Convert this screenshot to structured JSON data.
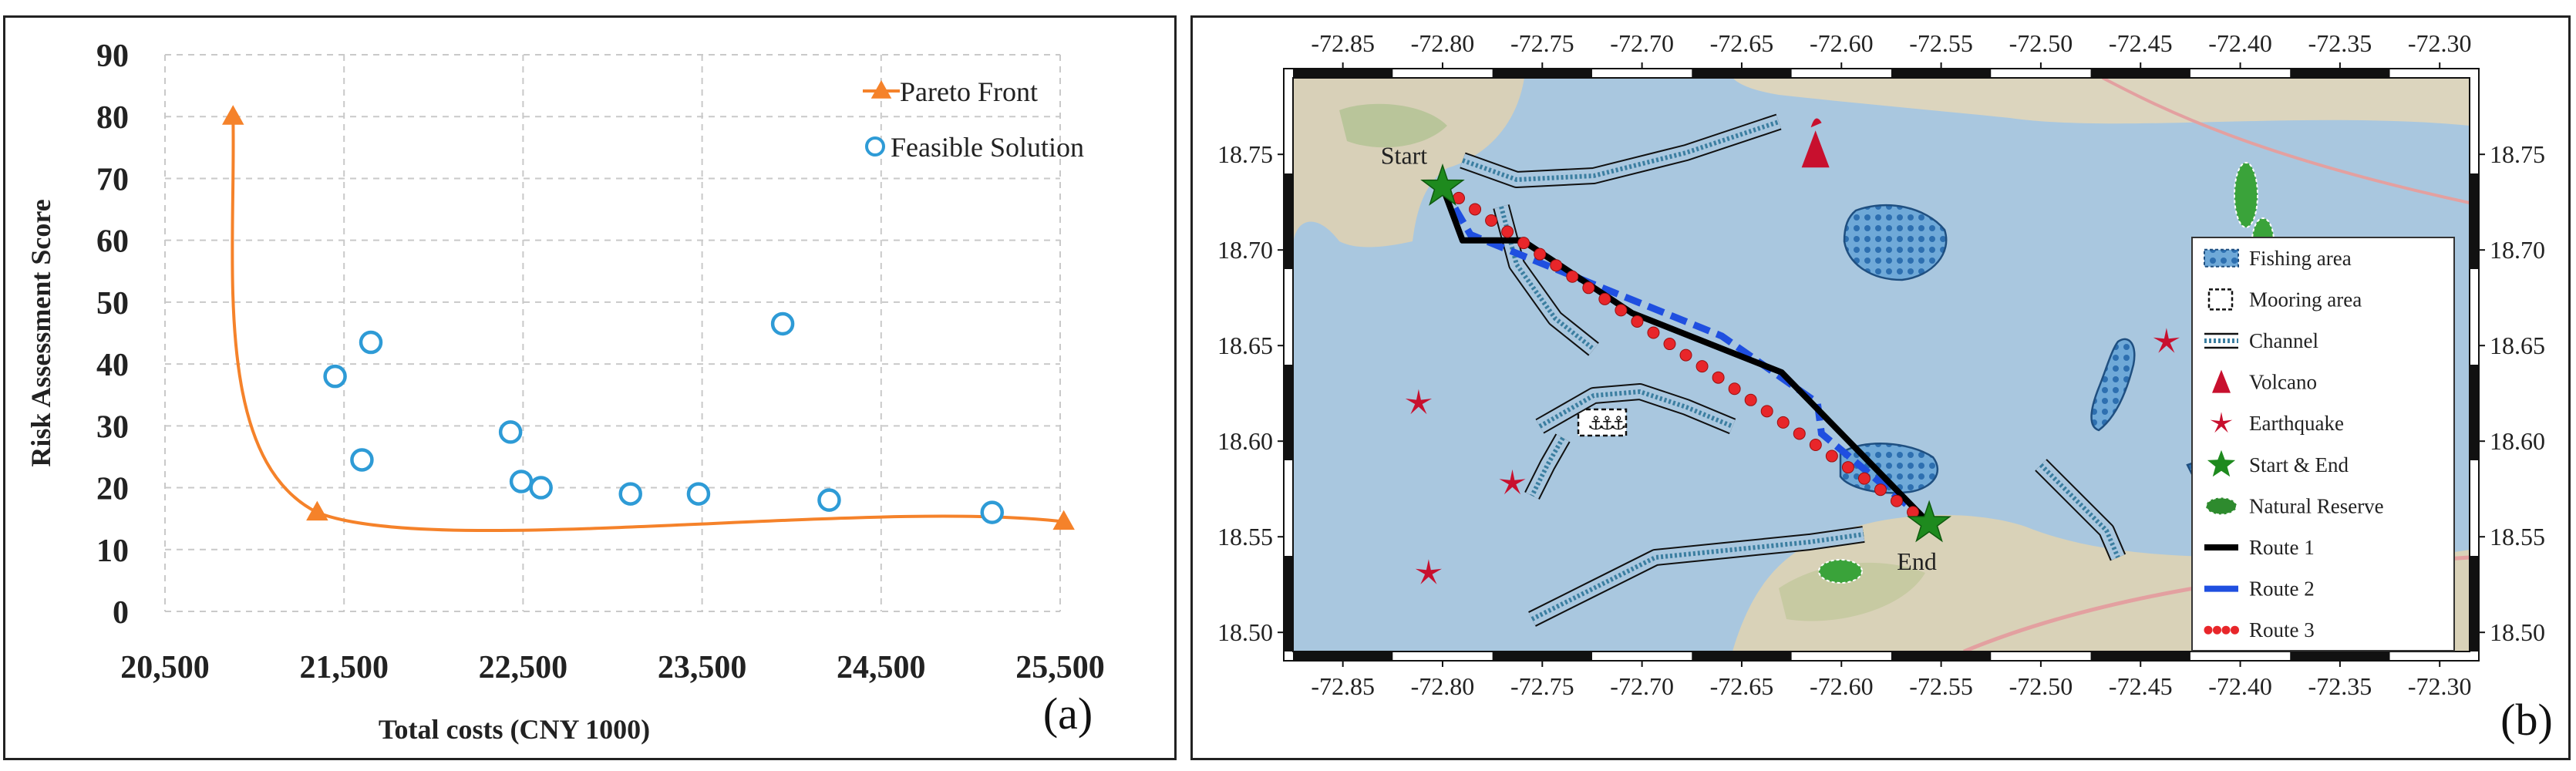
{
  "chart_data": [
    {
      "type": "scatter",
      "panel_label": "(a)",
      "xlabel": "Total costs (CNY 1000)",
      "ylabel": "Risk Assessment Score",
      "xlim": [
        20500,
        25500
      ],
      "ylim": [
        0,
        90
      ],
      "x_ticks": [
        "20,500",
        "21,500",
        "22,500",
        "23,500",
        "24,500",
        "25,500"
      ],
      "y_ticks": [
        "0",
        "10",
        "20",
        "30",
        "40",
        "50",
        "60",
        "70",
        "80",
        "90"
      ],
      "grid": "dashed",
      "legend_position": "top-right",
      "series": [
        {
          "name": "Pareto Front",
          "marker": "triangle",
          "color": "#F5822A",
          "points": [
            [
              20880,
              80
            ],
            [
              21350,
              16
            ],
            [
              25520,
              14.5
            ]
          ]
        },
        {
          "name": "Feasible Solution",
          "marker": "circle",
          "color": "#2E9BD6",
          "points": [
            [
              21450,
              38
            ],
            [
              21600,
              24.5
            ],
            [
              21650,
              43.5
            ],
            [
              22430,
              29
            ],
            [
              22490,
              21
            ],
            [
              22600,
              20
            ],
            [
              23100,
              19
            ],
            [
              23480,
              19
            ],
            [
              23950,
              46.5
            ],
            [
              24210,
              18
            ],
            [
              25120,
              16
            ]
          ]
        }
      ]
    },
    {
      "type": "map",
      "panel_label": "(b)",
      "x_ticks": [
        "-72.85",
        "-72.80",
        "-72.75",
        "-72.70",
        "-72.65",
        "-72.60",
        "-72.55",
        "-72.50",
        "-72.45",
        "-72.40",
        "-72.35",
        "-72.30"
      ],
      "y_ticks": [
        "18.75",
        "18.70",
        "18.65",
        "18.60",
        "18.55",
        "18.50"
      ],
      "lon_range": [
        -72.875,
        -72.285
      ],
      "lat_range": [
        18.49,
        18.79
      ],
      "annotations": [
        "Start",
        "End"
      ],
      "legend": [
        {
          "label": "Fishing area",
          "symbol": "fishing"
        },
        {
          "label": "Mooring area",
          "symbol": "mooring"
        },
        {
          "label": "Channel",
          "symbol": "channel"
        },
        {
          "label": "Volcano",
          "symbol": "volcano",
          "color": "#C8102E"
        },
        {
          "label": "Earthquake",
          "symbol": "earthquake",
          "color": "#C8102E"
        },
        {
          "label": "Start & End",
          "symbol": "star",
          "color": "#1E8A1E"
        },
        {
          "label": "Natural Reserve",
          "symbol": "reserve",
          "color": "#2E8B2E"
        },
        {
          "label": "Route 1",
          "symbol": "line",
          "color": "#000000"
        },
        {
          "label": "Route 2",
          "symbol": "line",
          "color": "#1F4FE0"
        },
        {
          "label": "Route 3",
          "symbol": "dots",
          "color": "#E8262A"
        }
      ],
      "routes": {
        "Route 1": [
          [
            -72.8,
            18.733
          ],
          [
            -72.79,
            18.705
          ],
          [
            -72.76,
            18.705
          ],
          [
            -72.705,
            18.667
          ],
          [
            -72.63,
            18.636
          ],
          [
            -72.556,
            18.557
          ]
        ],
        "Route 2": [
          [
            -72.8,
            18.733
          ],
          [
            -72.786,
            18.708
          ],
          [
            -72.66,
            18.655
          ],
          [
            -72.612,
            18.62
          ],
          [
            -72.61,
            18.604
          ],
          [
            -72.556,
            18.557
          ]
        ],
        "Route 3": [
          [
            -72.8,
            18.733
          ],
          [
            -72.556,
            18.557
          ]
        ]
      },
      "start": [
        -72.8,
        18.733
      ],
      "end": [
        -72.556,
        18.557
      ],
      "volcanoes": [
        [
          -72.613,
          18.752
        ]
      ],
      "earthquakes": [
        [
          -72.812,
          18.62
        ],
        [
          -72.765,
          18.578
        ],
        [
          -72.807,
          18.531
        ],
        [
          -72.437,
          18.652
        ]
      ]
    }
  ]
}
